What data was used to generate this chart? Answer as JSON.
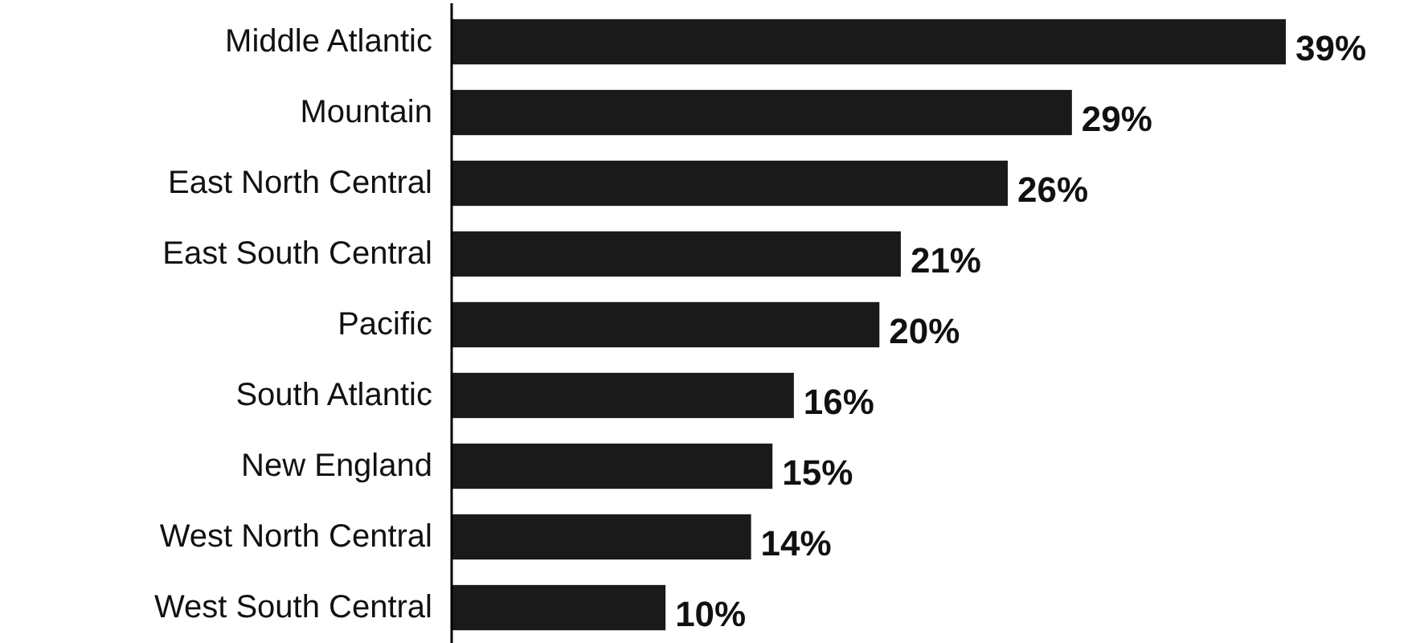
{
  "chart_data": {
    "type": "bar",
    "orientation": "horizontal",
    "categories": [
      "Middle Atlantic",
      "Mountain",
      "East North Central",
      "East South Central",
      "Pacific",
      "South Atlantic",
      "New England",
      "West North Central",
      "West South Central"
    ],
    "values": [
      39,
      29,
      26,
      21,
      20,
      16,
      15,
      14,
      10
    ],
    "value_labels": [
      "39%",
      "29%",
      "26%",
      "21%",
      "20%",
      "16%",
      "15%",
      "14%",
      "10%"
    ],
    "color": "#1a1a1a"
  }
}
